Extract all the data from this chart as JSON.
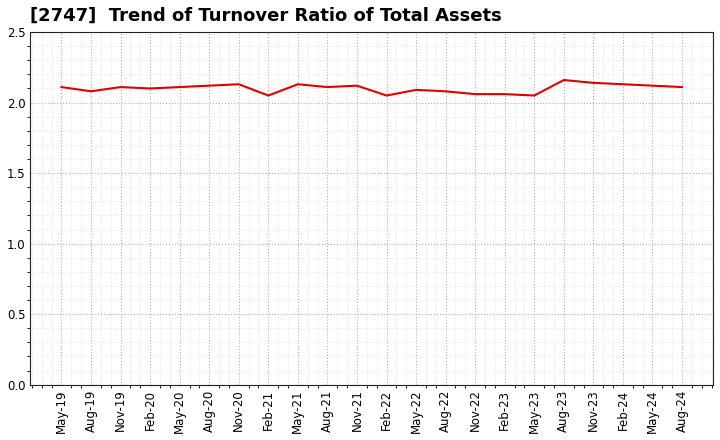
{
  "title": "[2747]  Trend of Turnover Ratio of Total Assets",
  "x_labels": [
    "May-19",
    "Aug-19",
    "Nov-19",
    "Feb-20",
    "May-20",
    "Aug-20",
    "Nov-20",
    "Feb-21",
    "May-21",
    "Aug-21",
    "Nov-21",
    "Feb-22",
    "May-22",
    "Aug-22",
    "Nov-22",
    "Feb-23",
    "May-23",
    "Aug-23",
    "Nov-23",
    "Feb-24",
    "May-24",
    "Aug-24"
  ],
  "values": [
    2.11,
    2.08,
    2.11,
    2.1,
    2.11,
    2.12,
    2.13,
    2.05,
    2.13,
    2.11,
    2.12,
    2.05,
    2.09,
    2.08,
    2.06,
    2.06,
    2.05,
    2.16,
    2.14,
    2.13,
    2.12,
    2.11
  ],
  "line_color": "#dd0000",
  "line_width": 1.5,
  "ylim": [
    0.0,
    2.5
  ],
  "yticks": [
    0.0,
    0.5,
    1.0,
    1.5,
    2.0,
    2.5
  ],
  "title_fontsize": 13,
  "tick_fontsize": 8.5,
  "background_color": "#ffffff",
  "plot_bg_color": "#f5f5f5",
  "grid_color_major": "#aaaaaa",
  "grid_color_minor": "#cccccc",
  "spine_color": "#222222"
}
